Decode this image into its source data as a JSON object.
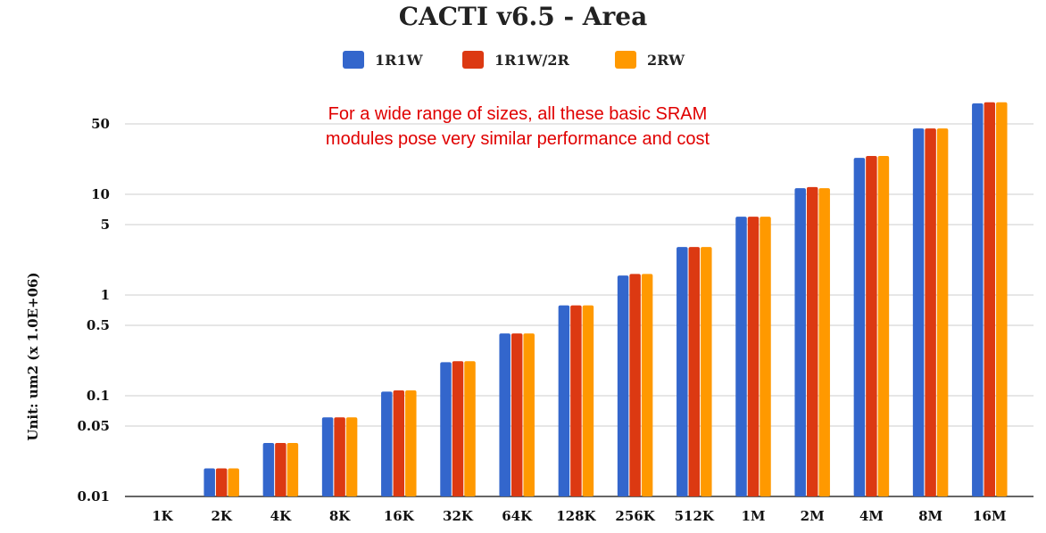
{
  "chart_data": {
    "type": "bar",
    "title": "CACTI v6.5 - Area",
    "ylabel": "Unit: um2 (x 1.0E+06)",
    "xlabel": "",
    "y_scale": "log",
    "ylim": [
      0.01,
      100
    ],
    "yticks": [
      0.01,
      0.05,
      0.1,
      0.5,
      1,
      5,
      10,
      50
    ],
    "ytick_labels": [
      "0.01",
      "0.05",
      "0.1",
      "0.5",
      "1",
      "5",
      "10",
      "50"
    ],
    "grid": true,
    "legend_position": "top-center",
    "annotation": [
      "For a wide range of sizes, all these basic SRAM",
      "modules pose very similar performance and cost"
    ],
    "categories": [
      "1K",
      "2K",
      "4K",
      "8K",
      "16K",
      "32K",
      "64K",
      "128K",
      "256K",
      "512K",
      "1M",
      "2M",
      "4M",
      "8M",
      "16M"
    ],
    "series": [
      {
        "name": "1R1W",
        "color": "#3366cc",
        "values": [
          null,
          0.019,
          0.034,
          0.061,
          0.11,
          0.215,
          0.415,
          0.79,
          1.56,
          3.0,
          6.0,
          11.5,
          23.0,
          45.0,
          80.0
        ]
      },
      {
        "name": "1R1W/2R",
        "color": "#dc3912",
        "values": [
          null,
          0.019,
          0.034,
          0.061,
          0.113,
          0.22,
          0.415,
          0.79,
          1.62,
          3.0,
          6.0,
          11.8,
          24.0,
          45.0,
          82.0
        ]
      },
      {
        "name": "2RW",
        "color": "#ff9900",
        "values": [
          null,
          0.019,
          0.034,
          0.061,
          0.113,
          0.22,
          0.415,
          0.79,
          1.62,
          3.0,
          6.0,
          11.5,
          24.0,
          45.0,
          82.0
        ]
      }
    ]
  }
}
